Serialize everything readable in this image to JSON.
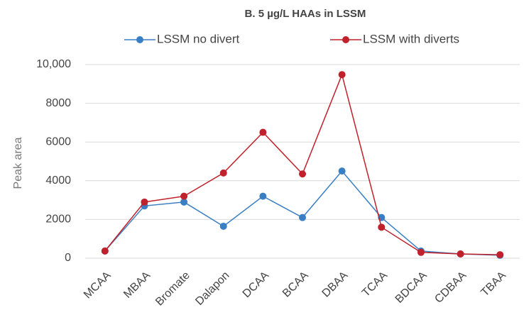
{
  "chart_data": {
    "type": "line",
    "title": "B. 5 µg/L HAAs in LSSM",
    "y_label": "Peak area",
    "categories": [
      "MCAA",
      "MBAA",
      "Bromate",
      "Dalapon",
      "DCAA",
      "BCAA",
      "DBAA",
      "TCAA",
      "BDCAA",
      "CDBAA",
      "TBAA"
    ],
    "series": [
      {
        "name": "LSSM no divert",
        "color": "#3a7fc4",
        "values": [
          370,
          2700,
          2900,
          1650,
          3200,
          2100,
          4500,
          2100,
          370,
          220,
          150
        ]
      },
      {
        "name": "LSSM with diverts",
        "color": "#c0212b",
        "values": [
          370,
          2900,
          3200,
          4400,
          6500,
          4350,
          9480,
          1600,
          300,
          220,
          180
        ]
      }
    ],
    "ylim": [
      0,
      10000
    ],
    "yticks": [
      0,
      2000,
      4000,
      6000,
      8000,
      {
        "value": 10000,
        "label": "10,000"
      }
    ],
    "grid": true,
    "legend": "top"
  }
}
